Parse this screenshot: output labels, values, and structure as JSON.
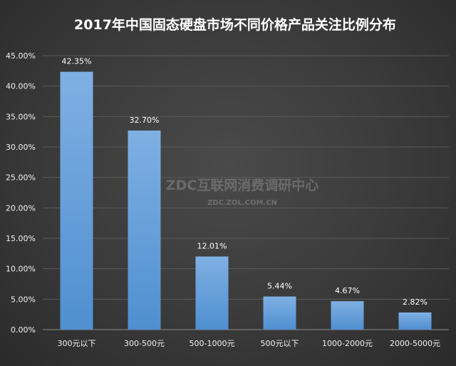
{
  "chart_data": {
    "type": "bar",
    "title": "2017年中国固态硬盘市场不同价格产品关注比例分布",
    "categories": [
      "300元以下",
      "300-500元",
      "500-1000元",
      "500元以下",
      "1000-2000元",
      "2000-5000元"
    ],
    "values": [
      42.35,
      32.7,
      12.01,
      5.44,
      4.67,
      2.82
    ],
    "data_labels": [
      "42.35%",
      "32.70%",
      "12.01%",
      "5.44%",
      "4.67%",
      "2.82%"
    ],
    "y_ticks": [
      "0.00%",
      "5.00%",
      "10.00%",
      "15.00%",
      "20.00%",
      "25.00%",
      "30.00%",
      "35.00%",
      "40.00%",
      "45.00%"
    ],
    "ylim": [
      0,
      45
    ],
    "grid": true,
    "bar_color": "#5b9bd5",
    "background_color": "#3c3c3c"
  },
  "watermark": {
    "main": "ZDC互联网消费调研中心",
    "sub": "ZDC.ZOL.COM.CN"
  }
}
